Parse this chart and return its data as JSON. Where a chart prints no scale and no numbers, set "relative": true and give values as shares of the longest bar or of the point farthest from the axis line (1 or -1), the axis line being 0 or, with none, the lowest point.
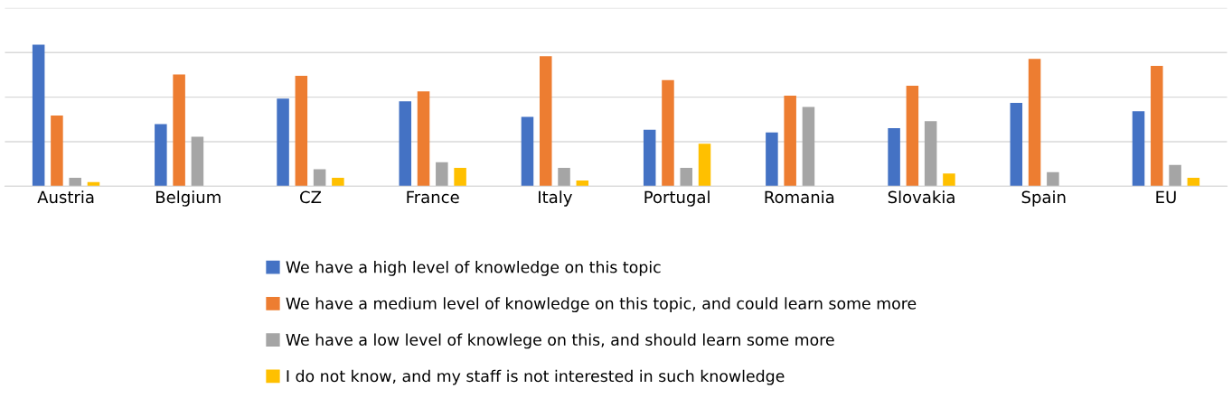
{
  "chart_data": {
    "type": "bar",
    "relative": true,
    "grid": "y",
    "legend": "bottom",
    "categories": [
      "Austria",
      "Belgium",
      "CZ",
      "France",
      "Italy",
      "Portugal",
      "Romania",
      "Slovakia",
      "Spain",
      "EU"
    ],
    "series": [
      {
        "name": "We have a high level of knowledge on this topic",
        "color": "#4472c4",
        "values": [
          1.0,
          0.44,
          0.62,
          0.6,
          0.49,
          0.4,
          0.38,
          0.41,
          0.59,
          0.53
        ]
      },
      {
        "name": "We have a medium level of knowledge on this topic, and could learn some more",
        "color": "#ed7d31",
        "values": [
          0.5,
          0.79,
          0.78,
          0.67,
          0.92,
          0.75,
          0.64,
          0.71,
          0.9,
          0.85
        ]
      },
      {
        "name": "We have a low level of knowlege on this, and should learn some more",
        "color": "#a5a5a5",
        "values": [
          0.06,
          0.35,
          0.12,
          0.17,
          0.13,
          0.13,
          0.56,
          0.46,
          0.1,
          0.15
        ]
      },
      {
        "name": "I do not know, and my staff is not interested in such knowledge",
        "color": "#ffc000",
        "values": [
          0.03,
          0,
          0.06,
          0.13,
          0.04,
          0.3,
          0,
          0.09,
          0,
          0.06
        ]
      }
    ]
  }
}
